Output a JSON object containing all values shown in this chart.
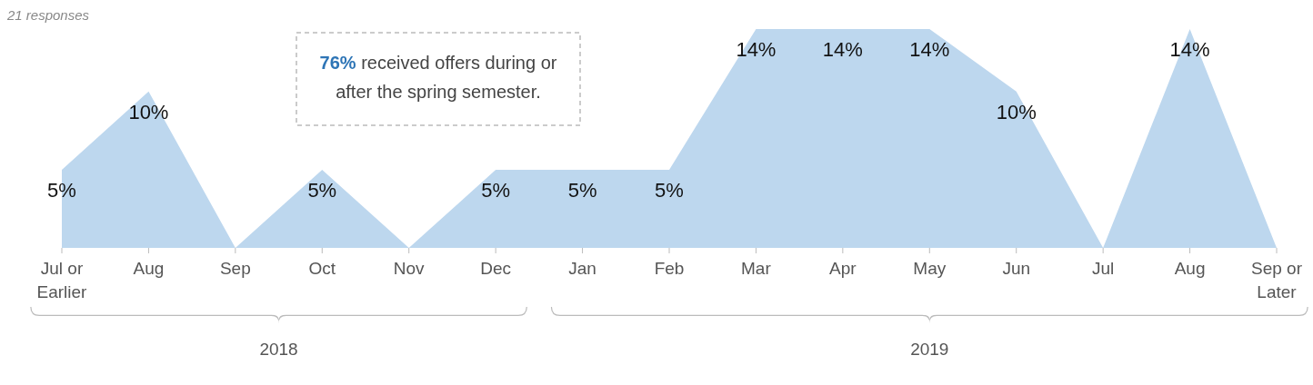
{
  "chart_data": {
    "type": "area",
    "subtitle": "21 responses",
    "categories": [
      "Jul or Earlier",
      "Aug",
      "Sep",
      "Oct",
      "Nov",
      "Dec",
      "Jan",
      "Feb",
      "Mar",
      "Apr",
      "May",
      "Jun",
      "Jul",
      "Aug",
      "Sep or Later"
    ],
    "values": [
      5,
      10,
      0,
      5,
      0,
      5,
      5,
      5,
      14,
      14,
      14,
      10,
      0,
      14,
      0
    ],
    "value_labels": [
      "5%",
      "10%",
      null,
      "5%",
      null,
      "5%",
      "5%",
      "5%",
      "14%",
      "14%",
      "14%",
      "10%",
      null,
      "14%",
      null
    ],
    "color": "#bdd7ee",
    "annotations": [
      "76% received offers during or after the spring semester.",
      "2018",
      "2019"
    ],
    "grid": false
  }
}
